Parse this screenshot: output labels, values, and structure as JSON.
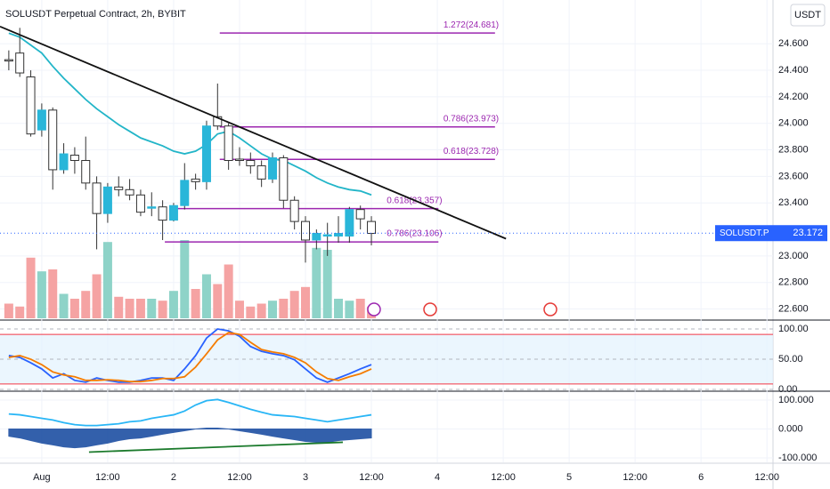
{
  "chart_data": [
    {
      "type": "candlestick",
      "title": "SOLUSDT Perpetual Contract, 2h, BYBIT",
      "currency": "USDT",
      "price_label": "SOLUSDT.P",
      "last_price": 23.172,
      "xlim": [
        -7.6,
        133.1
      ],
      "ylim": [
        22.53,
        24.93
      ],
      "xticks": [
        {
          "value": 0,
          "label": "Aug"
        },
        {
          "value": 12,
          "label": "12:00"
        },
        {
          "value": 24,
          "label": "2"
        },
        {
          "value": 36,
          "label": "12:00"
        },
        {
          "value": 48,
          "label": "3"
        },
        {
          "value": 60,
          "label": "12:00"
        },
        {
          "value": 72,
          "label": "4"
        },
        {
          "value": 84,
          "label": "12:00"
        },
        {
          "value": 96,
          "label": "5"
        },
        {
          "value": 108,
          "label": "12:00"
        },
        {
          "value": 120,
          "label": "6"
        },
        {
          "value": 132,
          "label": "12:00"
        }
      ],
      "yticks": [
        {
          "value": 24.6,
          "label": "24.600"
        },
        {
          "value": 24.4,
          "label": "24.400"
        },
        {
          "value": 24.2,
          "label": "24.200"
        },
        {
          "value": 24.0,
          "label": "24.000"
        },
        {
          "value": 23.8,
          "label": "23.800"
        },
        {
          "value": 23.6,
          "label": "23.600"
        },
        {
          "value": 23.4,
          "label": "23.400"
        },
        {
          "value": 23.0,
          "label": "23.000"
        },
        {
          "value": 22.8,
          "label": "22.800"
        },
        {
          "value": 22.6,
          "label": "22.600"
        }
      ],
      "grid": true,
      "up_color": "#29b6d9",
      "down_color": "#ffffff",
      "x": [
        -6,
        -4,
        -2,
        0,
        2,
        4,
        6,
        8,
        10,
        12,
        14,
        16,
        18,
        20,
        22,
        24,
        26,
        28,
        30,
        32,
        34,
        36,
        38,
        40,
        42,
        44,
        46,
        48,
        50,
        52,
        54,
        56,
        58,
        60
      ],
      "open": [
        24.48,
        24.53,
        24.35,
        23.95,
        24.1,
        23.65,
        23.76,
        23.72,
        23.55,
        23.32,
        23.52,
        23.5,
        23.46,
        23.36,
        23.37,
        23.27,
        23.38,
        23.58,
        23.56,
        24.05,
        23.98,
        23.73,
        23.72,
        23.68,
        23.58,
        23.74,
        23.42,
        23.26,
        23.12,
        23.15,
        23.15,
        23.15,
        23.35,
        23.26
      ],
      "high": [
        24.55,
        24.72,
        24.4,
        24.15,
        24.12,
        23.85,
        23.82,
        23.9,
        23.6,
        23.55,
        23.6,
        23.58,
        23.5,
        23.48,
        23.42,
        23.4,
        23.7,
        23.62,
        24.02,
        24.3,
        24.0,
        23.82,
        23.78,
        23.72,
        23.78,
        23.76,
        23.45,
        23.3,
        23.2,
        23.25,
        23.3,
        23.37,
        23.38,
        23.3
      ],
      "low": [
        24.4,
        24.35,
        23.9,
        23.9,
        23.5,
        23.62,
        23.62,
        23.5,
        23.05,
        23.25,
        23.45,
        23.42,
        23.3,
        23.3,
        23.12,
        23.26,
        23.35,
        23.5,
        23.5,
        23.95,
        23.65,
        23.68,
        23.62,
        23.52,
        23.55,
        23.36,
        23.2,
        22.95,
        23.05,
        23.0,
        23.1,
        23.1,
        23.2,
        23.08
      ],
      "close": [
        24.47,
        24.38,
        23.92,
        24.1,
        23.65,
        23.77,
        23.72,
        23.55,
        23.32,
        23.52,
        23.5,
        23.46,
        23.33,
        23.37,
        23.27,
        23.38,
        23.57,
        23.56,
        23.98,
        23.98,
        23.72,
        23.72,
        23.68,
        23.58,
        23.74,
        23.42,
        23.26,
        23.12,
        23.17,
        23.16,
        23.17,
        23.35,
        23.28,
        23.17
      ],
      "volume": [
        15,
        12,
        62,
        48,
        50,
        25,
        20,
        28,
        45,
        78,
        22,
        20,
        20,
        20,
        18,
        28,
        80,
        30,
        45,
        35,
        55,
        18,
        12,
        15,
        18,
        20,
        28,
        32,
        72,
        70,
        20,
        18,
        20,
        12
      ],
      "volume_lim": [
        0,
        100
      ],
      "volume_up_color": "#8ed3c8",
      "volume_down_color": "#f5a3a3",
      "ema": {
        "color": "#22b5c8",
        "values": [
          24.68,
          24.65,
          24.59,
          24.53,
          24.43,
          24.34,
          24.26,
          24.18,
          24.11,
          24.05,
          23.99,
          23.94,
          23.89,
          23.86,
          23.83,
          23.79,
          23.77,
          23.79,
          23.84,
          23.92,
          23.94,
          23.89,
          23.83,
          23.77,
          23.73,
          23.72,
          23.68,
          23.64,
          23.59,
          23.55,
          23.52,
          23.5,
          23.49,
          23.46
        ]
      },
      "trendline": {
        "color": "#111111",
        "x": [
          -7.6,
          84.5
        ],
        "y": [
          24.73,
          23.13
        ]
      },
      "level_color": "#9c27b0",
      "levels": [
        {
          "label": "1.272(24.681)",
          "value": 24.681,
          "x": [
            32.4,
            82.5
          ]
        },
        {
          "label": "0.786(23.973)",
          "value": 23.973,
          "x": [
            32.4,
            82.5
          ]
        },
        {
          "label": "0.618(23.728)",
          "value": 23.728,
          "x": [
            32.4,
            82.5
          ]
        },
        {
          "label": "0.618(23.357)",
          "value": 23.357,
          "x": [
            23.2,
            72.2
          ]
        },
        {
          "label": "0.786(23.106)",
          "value": 23.106,
          "x": [
            22.4,
            72.2
          ]
        }
      ]
    },
    {
      "type": "line",
      "ylim": [
        -2.9,
        111.8
      ],
      "yticks": [
        {
          "value": 100,
          "label": "100.00"
        },
        {
          "value": 50,
          "label": "50.00"
        },
        {
          "value": 0,
          "label": "0.00"
        }
      ],
      "bands": [
        9,
        91
      ],
      "band_color": "#f23645",
      "x": [
        -6,
        -4,
        -2,
        0,
        2,
        4,
        6,
        8,
        10,
        12,
        14,
        16,
        18,
        20,
        22,
        24,
        26,
        28,
        30,
        32,
        34,
        36,
        38,
        40,
        42,
        44,
        46,
        48,
        50,
        52,
        54,
        56,
        58,
        60
      ],
      "series": [
        {
          "color": "#2962ff",
          "values": [
            56,
            53,
            44,
            34,
            19,
            26,
            15,
            12,
            19,
            15,
            12,
            12,
            15,
            19,
            19,
            15,
            34,
            56,
            85,
            100,
            97,
            88,
            71,
            63,
            59,
            56,
            49,
            34,
            19,
            12,
            19,
            26,
            34,
            41
          ]
        },
        {
          "color": "#f57c00",
          "values": [
            53,
            56,
            50,
            41,
            29,
            24,
            21,
            15,
            15,
            16,
            15,
            13,
            13,
            15,
            18,
            18,
            21,
            37,
            59,
            82,
            94,
            91,
            78,
            66,
            62,
            59,
            53,
            44,
            29,
            18,
            15,
            21,
            26,
            34
          ]
        }
      ]
    },
    {
      "type": "line",
      "ylim": [
        -115.4,
        124.6
      ],
      "yticks": [
        {
          "value": 100,
          "label": "100.000"
        },
        {
          "value": 0,
          "label": "0.000"
        },
        {
          "value": -100,
          "label": "-100.000"
        }
      ],
      "x": [
        -6,
        -4,
        -2,
        0,
        2,
        4,
        6,
        8,
        10,
        12,
        14,
        16,
        18,
        20,
        22,
        24,
        26,
        28,
        30,
        32,
        34,
        36,
        38,
        40,
        42,
        44,
        46,
        48,
        50,
        52,
        54,
        56,
        58,
        60
      ],
      "series": [
        {
          "color": "#1e4fa3",
          "fill": true,
          "values": [
            -25,
            -31,
            -40,
            -49,
            -55,
            -62,
            -65,
            -62,
            -55,
            -49,
            -40,
            -34,
            -31,
            -25,
            -18,
            -12,
            -6,
            0,
            3,
            3,
            0,
            -6,
            -12,
            -18,
            -25,
            -31,
            -37,
            -43,
            -46,
            -46,
            -40,
            -37,
            -34,
            -31
          ]
        },
        {
          "color": "#29b6f6",
          "fill": false,
          "values": [
            52,
            49,
            43,
            37,
            31,
            22,
            15,
            12,
            12,
            15,
            18,
            25,
            28,
            37,
            43,
            49,
            62,
            83,
            98,
            102,
            92,
            80,
            68,
            58,
            49,
            46,
            43,
            37,
            31,
            25,
            31,
            37,
            43,
            49
          ]
        }
      ],
      "trendline": {
        "color": "#1b7a2c",
        "x": [
          8.6,
          54.8
        ],
        "y": [
          -80,
          -46
        ]
      }
    }
  ]
}
